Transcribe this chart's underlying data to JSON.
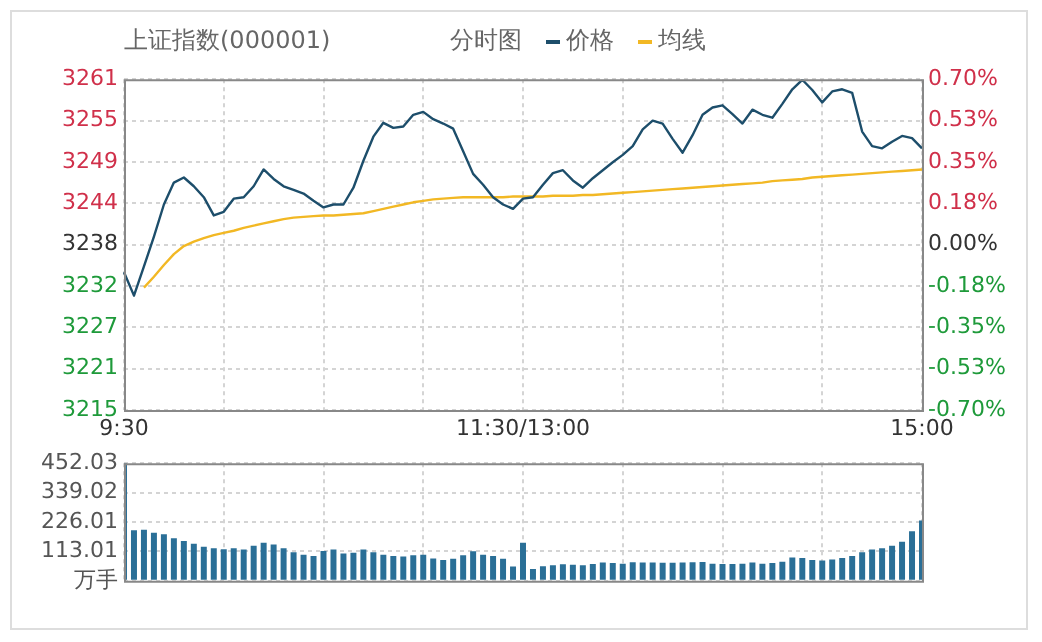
{
  "chart_data": [
    {
      "type": "line",
      "title": "上证指数(000001)",
      "subtitle": "分时图",
      "categories": [
        "9:30",
        null,
        null,
        null,
        null,
        null,
        null,
        null,
        null,
        null,
        null,
        null,
        null,
        null,
        null,
        null,
        null,
        null,
        null,
        null,
        null,
        null,
        null,
        null,
        null,
        null,
        null,
        null,
        null,
        null,
        null,
        null,
        null,
        null,
        null,
        null,
        null,
        null,
        null,
        null,
        "11:30/13:00",
        null,
        null,
        null,
        null,
        null,
        null,
        null,
        null,
        null,
        null,
        null,
        null,
        null,
        null,
        null,
        null,
        null,
        null,
        null,
        null,
        null,
        null,
        null,
        null,
        null,
        null,
        null,
        null,
        null,
        null,
        null,
        null,
        null,
        null,
        null,
        null,
        null,
        null,
        null,
        "15:00"
      ],
      "ylim": [
        3215.32,
        3260.68
      ],
      "yticks": [
        {
          "value": 3215.32,
          "label": "3215"
        },
        {
          "value": 3221.0,
          "label": "3221"
        },
        {
          "value": 3226.66,
          "label": "3227"
        },
        {
          "value": 3232.33,
          "label": "3232"
        },
        {
          "value": 3238.0,
          "label": "3238"
        },
        {
          "value": 3243.67,
          "label": "3244"
        },
        {
          "value": 3249.34,
          "label": "3249"
        },
        {
          "value": 3255.0,
          "label": "3255"
        },
        {
          "value": 3260.68,
          "label": "3261"
        }
      ],
      "y2lim": [
        -0.7,
        0.7
      ],
      "y2ticks": [
        {
          "value": -0.7,
          "label": "-0.70%"
        },
        {
          "value": -0.525,
          "label": "-0.53%"
        },
        {
          "value": -0.35,
          "label": "-0.35%"
        },
        {
          "value": -0.175,
          "label": "-0.18%"
        },
        {
          "value": 0,
          "label": "0.00%"
        },
        {
          "value": 0.175,
          "label": "0.18%"
        },
        {
          "value": 0.35,
          "label": "0.35%"
        },
        {
          "value": 0.525,
          "label": "0.53%"
        },
        {
          "value": 0.7,
          "label": "0.70%"
        }
      ],
      "series": [
        {
          "name": "价格",
          "color": "#1d4e6b",
          "values": [
            3234.2,
            3231.0,
            3235.0,
            3239.1,
            3243.5,
            3246.5,
            3247.2,
            3246.0,
            3244.5,
            3242.0,
            3242.5,
            3244.3,
            3244.5,
            3246.0,
            3248.3,
            3247.0,
            3246.0,
            3245.5,
            3245.0,
            3244.0,
            3243.1,
            3243.5,
            3243.5,
            3245.8,
            3249.5,
            3252.8,
            3254.7,
            3254.0,
            3254.2,
            3255.8,
            3256.2,
            3255.2,
            3254.6,
            3253.9,
            3250.8,
            3247.7,
            3246.2,
            3244.5,
            3243.5,
            3242.9,
            3244.3,
            3244.5,
            3246.2,
            3247.8,
            3248.2,
            3246.8,
            3245.8,
            3247.1,
            3248.2,
            3249.3,
            3250.3,
            3251.5,
            3253.8,
            3255.0,
            3254.6,
            3252.5,
            3250.6,
            3253.0,
            3255.8,
            3256.8,
            3257.1,
            3255.9,
            3254.6,
            3256.5,
            3255.8,
            3255.4,
            3257.3,
            3259.3,
            3260.6,
            3259.2,
            3257.5,
            3259.0,
            3259.3,
            3258.8,
            3253.5,
            3251.5,
            3251.2,
            3252.1,
            3252.9,
            3252.6,
            3251.2
          ]
        },
        {
          "name": "均线",
          "color": "#f2b824",
          "values": [
            null,
            null,
            3232.1,
            3233.6,
            3235.2,
            3236.7,
            3237.8,
            3238.4,
            3238.9,
            3239.3,
            3239.6,
            3239.9,
            3240.3,
            3240.6,
            3240.9,
            3241.2,
            3241.5,
            3241.7,
            3241.8,
            3241.9,
            3242.0,
            3242.0,
            3242.1,
            3242.2,
            3242.3,
            3242.6,
            3242.9,
            3243.2,
            3243.5,
            3243.8,
            3244.0,
            3244.2,
            3244.3,
            3244.4,
            3244.5,
            3244.5,
            3244.5,
            3244.5,
            3244.5,
            3244.6,
            3244.6,
            3244.6,
            3244.6,
            3244.7,
            3244.7,
            3244.7,
            3244.8,
            3244.8,
            3244.9,
            3245.0,
            3245.1,
            3245.2,
            3245.3,
            3245.4,
            3245.5,
            3245.6,
            3245.7,
            3245.8,
            3245.9,
            3246.0,
            3246.1,
            3246.2,
            3246.3,
            3246.4,
            3246.5,
            3246.7,
            3246.8,
            3246.9,
            3247.0,
            3247.2,
            3247.3,
            3247.4,
            3247.5,
            3247.6,
            3247.7,
            3247.8,
            3247.9,
            3248.0,
            3248.1,
            3248.2,
            3248.3
          ]
        }
      ],
      "legend": "top",
      "grid": true,
      "marker": "none",
      "line_style": "solid"
    },
    {
      "type": "bar",
      "color": "#2a6f97",
      "categories": [
        null,
        null,
        null,
        null,
        null,
        null,
        null,
        null,
        null,
        null,
        null,
        null,
        null,
        null,
        null,
        null,
        null,
        null,
        null,
        null,
        null,
        null,
        null,
        null,
        null,
        null,
        null,
        null,
        null,
        null,
        null,
        null,
        null,
        null,
        null,
        null,
        null,
        null,
        null,
        null,
        null,
        null,
        null,
        null,
        null,
        null,
        null,
        null,
        null,
        null,
        null,
        null,
        null,
        null,
        null,
        null,
        null,
        null,
        null,
        null,
        null,
        null,
        null,
        null,
        null,
        null,
        null,
        null,
        null,
        null,
        null,
        null,
        null,
        null,
        null,
        null,
        null,
        null,
        null,
        null,
        null
      ],
      "ylim": [
        0,
        452.03
      ],
      "yticks": [
        {
          "value": 0,
          "label": "万手"
        },
        113.01,
        226.01,
        339.02,
        452.03
      ],
      "values": [
        452,
        194,
        196,
        185,
        179,
        164,
        153,
        142,
        131,
        125,
        121,
        125,
        120,
        135,
        146,
        140,
        125,
        110,
        100,
        95,
        115,
        120,
        105,
        108,
        120,
        110,
        100,
        95,
        93,
        98,
        100,
        86,
        80,
        85,
        98,
        114,
        100,
        95,
        85,
        55,
        146,
        45,
        56,
        60,
        64,
        62,
        60,
        65,
        70,
        68,
        66,
        71,
        70,
        70,
        69,
        69,
        70,
        71,
        72,
        66,
        65,
        65,
        66,
        70,
        66,
        68,
        73,
        90,
        88,
        80,
        78,
        82,
        88,
        95,
        110,
        120,
        125,
        135,
        150,
        190,
        232
      ],
      "grid": true
    }
  ]
}
